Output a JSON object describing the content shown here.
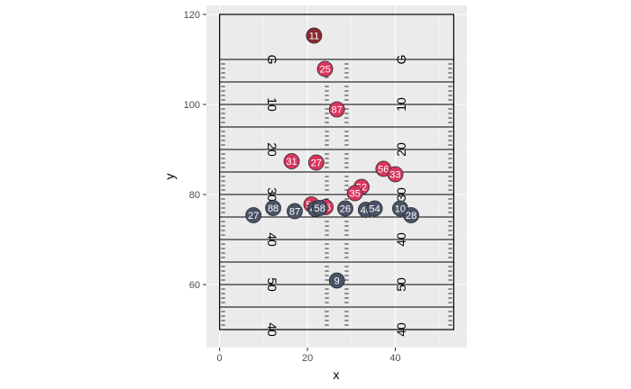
{
  "chart_data": {
    "type": "scatter",
    "xlabel": "x",
    "ylabel": "y",
    "xlim": [
      -3,
      56.3
    ],
    "ylim": [
      46,
      122
    ],
    "x_ticks": [
      0,
      20,
      40
    ],
    "y_ticks": [
      60,
      80,
      100,
      120
    ],
    "grid": true,
    "field": {
      "x_range": [
        0,
        53.3
      ],
      "y_range": [
        50,
        120
      ],
      "line_every": 5,
      "hash_x": [
        0.8,
        24.4,
        28.9,
        52.5
      ],
      "yard_numbers": [
        {
          "y": 50,
          "text": "40"
        },
        {
          "y": 60,
          "text": "50"
        },
        {
          "y": 70,
          "text": "40"
        },
        {
          "y": 80,
          "text": "30"
        },
        {
          "y": 90,
          "text": "20"
        },
        {
          "y": 100,
          "text": "10"
        },
        {
          "y": 110,
          "text": "G"
        }
      ],
      "number_x": [
        12,
        41.3
      ]
    },
    "series": [
      {
        "color": "#d9365f",
        "points": [
          {
            "x": 21.5,
            "y": 115.3,
            "label": "11",
            "color": "#8a2a30"
          },
          {
            "x": 24.0,
            "y": 107.9,
            "label": "25"
          },
          {
            "x": 26.7,
            "y": 98.9,
            "label": "87"
          },
          {
            "x": 16.4,
            "y": 87.4,
            "label": "31"
          },
          {
            "x": 22.0,
            "y": 87.1,
            "label": "27"
          },
          {
            "x": 37.3,
            "y": 85.7,
            "label": "56"
          },
          {
            "x": 40.0,
            "y": 84.5,
            "label": "33"
          },
          {
            "x": 32.3,
            "y": 81.7,
            "label": "52"
          },
          {
            "x": 30.8,
            "y": 80.3,
            "label": "35"
          },
          {
            "x": 20.9,
            "y": 77.8,
            "label": "59"
          },
          {
            "x": 24.1,
            "y": 77.2,
            "label": "96"
          }
        ]
      },
      {
        "color": "#4a5268",
        "points": [
          {
            "x": 7.7,
            "y": 75.4,
            "label": "27"
          },
          {
            "x": 12.2,
            "y": 77.0,
            "label": "88"
          },
          {
            "x": 17.1,
            "y": 76.3,
            "label": "87"
          },
          {
            "x": 21.8,
            "y": 76.8,
            "label": "49"
          },
          {
            "x": 22.8,
            "y": 77.0,
            "label": "58"
          },
          {
            "x": 28.6,
            "y": 76.9,
            "label": "26"
          },
          {
            "x": 33.3,
            "y": 76.6,
            "label": "40"
          },
          {
            "x": 35.3,
            "y": 76.9,
            "label": "54"
          },
          {
            "x": 41.1,
            "y": 76.9,
            "label": "10"
          },
          {
            "x": 43.6,
            "y": 75.4,
            "label": "28"
          },
          {
            "x": 26.7,
            "y": 60.9,
            "label": "9"
          }
        ]
      }
    ]
  }
}
